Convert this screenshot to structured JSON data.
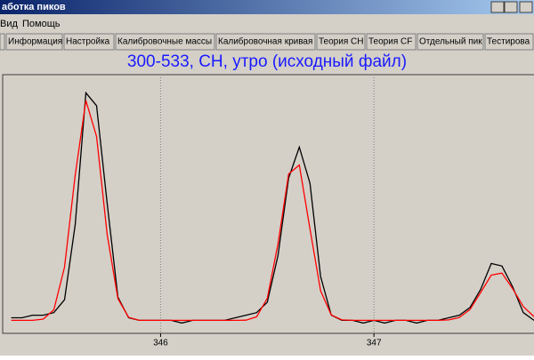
{
  "window": {
    "title": "аботка пиков",
    "menu": [
      "Вид",
      "Помощь"
    ],
    "tabs": [
      "Информация",
      "Настройка",
      "Калибровочные массы",
      "Калибровочная кривая",
      "Теория CH",
      "Теория CF",
      "Отдельный пик",
      "Тестирова"
    ]
  },
  "chart_data": {
    "type": "line",
    "title": "300-533, CH, утро (исходный файл)",
    "x": [
      345.3,
      345.35,
      345.4,
      345.45,
      345.5,
      345.55,
      345.6,
      345.65,
      345.7,
      345.75,
      345.8,
      345.85,
      345.9,
      345.95,
      346.0,
      346.05,
      346.1,
      346.15,
      346.2,
      346.25,
      346.3,
      346.35,
      346.4,
      346.45,
      346.5,
      346.55,
      346.6,
      346.65,
      346.7,
      346.75,
      346.8,
      346.85,
      346.9,
      346.95,
      347.0,
      347.05,
      347.1,
      347.15,
      347.2,
      347.25,
      347.3,
      347.35,
      347.4,
      347.45,
      347.5,
      347.55,
      347.6,
      347.65,
      347.7,
      347.75
    ],
    "series": [
      {
        "color": "#000000",
        "values": [
          6,
          6,
          7,
          7,
          8,
          13,
          42,
          93,
          88,
          50,
          14,
          6,
          5,
          5,
          5,
          5,
          4,
          5,
          5,
          5,
          5,
          6,
          7,
          8,
          12,
          30,
          60,
          72,
          58,
          22,
          7,
          5,
          5,
          4,
          5,
          4,
          5,
          5,
          4,
          5,
          5,
          6,
          7,
          10,
          17,
          27,
          26,
          18,
          8,
          5
        ]
      },
      {
        "color": "#ff0000",
        "values": [
          5,
          5,
          5,
          5.5,
          9.1,
          25.6,
          61.2,
          90,
          76.1,
          38,
          13.4,
          6.2,
          5,
          5,
          5,
          5,
          5,
          5,
          5,
          5,
          5,
          5,
          5.1,
          6.4,
          13.5,
          34.5,
          61.6,
          65.1,
          40.3,
          16.5,
          7.1,
          5.2,
          5,
          5,
          5,
          5,
          5,
          5,
          5,
          5,
          5,
          5.2,
          6.1,
          9.2,
          15.8,
          22.5,
          23.3,
          17.3,
          10.3,
          6.5
        ]
      }
    ],
    "xlim": [
      345.26,
      347.75
    ],
    "xticks": [
      346,
      347
    ],
    "ylim": [
      0,
      100
    ],
    "grid": true
  }
}
